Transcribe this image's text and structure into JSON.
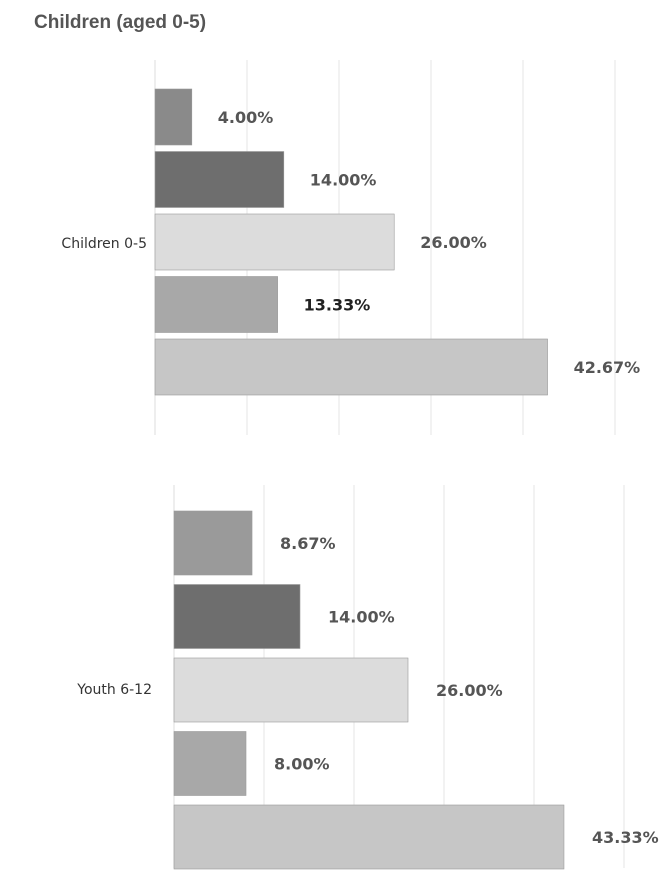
{
  "page": {
    "title": "Children (aged 0-5)"
  },
  "chart_data": [
    {
      "type": "bar",
      "orientation": "horizontal",
      "categories": [
        "Children 0-5"
      ],
      "series": [
        {
          "values": [
            4.0
          ],
          "label": "4.00%",
          "color": "#8a8a8a"
        },
        {
          "values": [
            14.0
          ],
          "label": "14.00%",
          "color": "#6e6e6e"
        },
        {
          "values": [
            26.0
          ],
          "label": "26.00%",
          "color": "#dcdcdc"
        },
        {
          "values": [
            13.33
          ],
          "label": "13.33%",
          "color": "#a8a8a8"
        },
        {
          "values": [
            42.67
          ],
          "label": "42.67%",
          "color": "#c6c6c6"
        }
      ],
      "xlim": [
        0,
        50
      ],
      "grid": true
    },
    {
      "type": "bar",
      "orientation": "horizontal",
      "categories": [
        "Youth 6-12"
      ],
      "series": [
        {
          "values": [
            8.67
          ],
          "label": "8.67%",
          "color": "#9a9a9a"
        },
        {
          "values": [
            14.0
          ],
          "label": "14.00%",
          "color": "#6e6e6e"
        },
        {
          "values": [
            26.0
          ],
          "label": "26.00%",
          "color": "#dcdcdc"
        },
        {
          "values": [
            8.0
          ],
          "label": "8.00%",
          "color": "#a8a8a8"
        },
        {
          "values": [
            43.33
          ],
          "label": "43.33%",
          "color": "#c6c6c6"
        }
      ],
      "xlim": [
        0,
        50
      ],
      "grid": true
    }
  ]
}
